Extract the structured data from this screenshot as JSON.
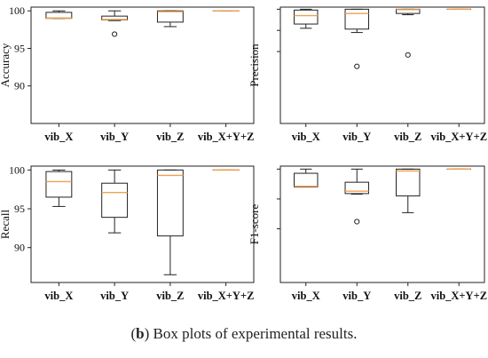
{
  "caption": {
    "prefix": "(",
    "label": "b",
    "text": ") Box plots of experimental results."
  },
  "colors": {
    "median": "#f0a050",
    "box": "#222222",
    "frame": "#222222"
  },
  "chart_data": [
    {
      "type": "box",
      "ylabel": "Accuracy",
      "categories": [
        "vib_X",
        "vib_Y",
        "vib_Z",
        "vib_X+Y+Z"
      ],
      "ylim": [
        85,
        100.5
      ],
      "yticks": [
        90,
        95,
        100
      ],
      "boxes": [
        {
          "whislo": 99.0,
          "q1": 99.0,
          "med": 99.05,
          "q3": 99.8,
          "whishi": 100.0,
          "fliers": []
        },
        {
          "whislo": 98.7,
          "q1": 98.8,
          "med": 98.85,
          "q3": 99.3,
          "whishi": 100.0,
          "fliers": [
            96.9
          ]
        },
        {
          "whislo": 97.9,
          "q1": 98.5,
          "med": 99.9,
          "q3": 100.0,
          "whishi": 100.0,
          "fliers": []
        },
        {
          "whislo": 100.0,
          "q1": 100.0,
          "med": 100.0,
          "q3": 100.0,
          "whishi": 100.0,
          "fliers": []
        }
      ]
    },
    {
      "type": "box",
      "ylabel": "Precision",
      "categories": [
        "vib_X",
        "vib_Y",
        "vib_Z",
        "vib_X+Y+Z"
      ],
      "ylim": [
        73,
        100.5
      ],
      "yticks": [],
      "boxes": [
        {
          "whislo": 95.5,
          "q1": 96.5,
          "med": 98.5,
          "q3": 99.8,
          "whishi": 100.0,
          "fliers": []
        },
        {
          "whislo": 94.5,
          "q1": 95.3,
          "med": 99.0,
          "q3": 100.0,
          "whishi": 100.0,
          "fliers": [
            86.5
          ]
        },
        {
          "whislo": 98.7,
          "q1": 99.0,
          "med": 99.9,
          "q3": 100.0,
          "whishi": 100.0,
          "fliers": [
            89.2
          ]
        },
        {
          "whislo": 100.0,
          "q1": 100.0,
          "med": 100.0,
          "q3": 100.0,
          "whishi": 100.0,
          "fliers": []
        }
      ]
    },
    {
      "type": "box",
      "ylabel": "Recall",
      "categories": [
        "vib_X",
        "vib_Y",
        "vib_Z",
        "vib_X+Y+Z"
      ],
      "ylim": [
        85.5,
        100.5
      ],
      "yticks": [
        90,
        95,
        100
      ],
      "boxes": [
        {
          "whislo": 95.3,
          "q1": 96.5,
          "med": 98.5,
          "q3": 99.8,
          "whishi": 100.0,
          "fliers": []
        },
        {
          "whislo": 91.9,
          "q1": 93.9,
          "med": 97.1,
          "q3": 98.3,
          "whishi": 100.0,
          "fliers": []
        },
        {
          "whislo": 86.5,
          "q1": 91.5,
          "med": 99.3,
          "q3": 100.0,
          "whishi": 100.0,
          "fliers": []
        },
        {
          "whislo": 100.0,
          "q1": 100.0,
          "med": 100.0,
          "q3": 100.0,
          "whishi": 100.0,
          "fliers": []
        }
      ]
    },
    {
      "type": "box",
      "ylabel": "F1-score",
      "categories": [
        "vib_X",
        "vib_Y",
        "vib_Z",
        "vib_X+Y+Z"
      ],
      "ylim": [
        81,
        100.5
      ],
      "yticks": [],
      "boxes": [
        {
          "whislo": 97.0,
          "q1": 97.0,
          "med": 97.1,
          "q3": 99.3,
          "whishi": 100.0,
          "fliers": []
        },
        {
          "whislo": 95.8,
          "q1": 95.9,
          "med": 96.3,
          "q3": 97.8,
          "whishi": 100.0,
          "fliers": [
            91.2
          ]
        },
        {
          "whislo": 92.7,
          "q1": 95.5,
          "med": 99.7,
          "q3": 100.0,
          "whishi": 100.0,
          "fliers": []
        },
        {
          "whislo": 100.0,
          "q1": 100.0,
          "med": 100.0,
          "q3": 100.0,
          "whishi": 100.0,
          "fliers": []
        }
      ]
    }
  ]
}
